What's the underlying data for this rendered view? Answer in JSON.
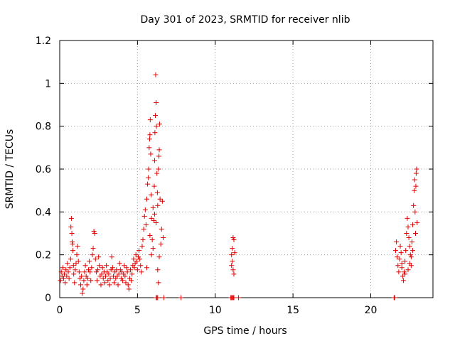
{
  "chart_data": {
    "type": "scatter",
    "title": "Day 301 of 2023, SRMTID for receiver nlib",
    "xlabel": "GPS time / hours",
    "ylabel": "SRMTID / TECUs",
    "xlim": [
      0,
      24
    ],
    "ylim": [
      0,
      1.2
    ],
    "xticks": [
      0,
      5,
      10,
      15,
      20
    ],
    "xtick_labels": [
      "0",
      "5",
      "10",
      "15",
      "20"
    ],
    "yticks": [
      0,
      0.2,
      0.4,
      0.6,
      0.8,
      1.0,
      1.2
    ],
    "ytick_labels": [
      "0",
      "0.2",
      "0.4",
      "0.6",
      "0.8",
      "1",
      "1.2"
    ],
    "grid": true,
    "marker": "+",
    "marker_color": "#e00000",
    "series": [
      {
        "name": "SRMTID",
        "points": [
          [
            0.05,
            0.08
          ],
          [
            0.1,
            0.12
          ],
          [
            0.15,
            0.1
          ],
          [
            0.2,
            0.14
          ],
          [
            0.25,
            0.09
          ],
          [
            0.3,
            0.11
          ],
          [
            0.35,
            0.07
          ],
          [
            0.4,
            0.13
          ],
          [
            0.45,
            0.1
          ],
          [
            0.5,
            0.16
          ],
          [
            0.55,
            0.12
          ],
          [
            0.6,
            0.09
          ],
          [
            0.65,
            0.14
          ],
          [
            0.7,
            0.18
          ],
          [
            0.72,
            0.33
          ],
          [
            0.75,
            0.37
          ],
          [
            0.78,
            0.3
          ],
          [
            0.8,
            0.26
          ],
          [
            0.82,
            0.25
          ],
          [
            0.85,
            0.22
          ],
          [
            0.88,
            0.15
          ],
          [
            0.9,
            0.11
          ],
          [
            0.95,
            0.07
          ],
          [
            1.0,
            0.13
          ],
          [
            1.05,
            0.16
          ],
          [
            1.1,
            0.2
          ],
          [
            1.15,
            0.24
          ],
          [
            1.2,
            0.17
          ],
          [
            1.25,
            0.12
          ],
          [
            1.3,
            0.09
          ],
          [
            1.35,
            0.06
          ],
          [
            1.4,
            0.1
          ],
          [
            1.45,
            0.02
          ],
          [
            1.5,
            0.04
          ],
          [
            1.55,
            0.08
          ],
          [
            1.6,
            0.12
          ],
          [
            1.65,
            0.15
          ],
          [
            1.7,
            0.1
          ],
          [
            1.75,
            0.06
          ],
          [
            1.8,
            0.09
          ],
          [
            1.85,
            0.13
          ],
          [
            1.9,
            0.17
          ],
          [
            1.95,
            0.12
          ],
          [
            2.0,
            0.08
          ],
          [
            2.05,
            0.14
          ],
          [
            2.1,
            0.2
          ],
          [
            2.15,
            0.23
          ],
          [
            2.2,
            0.31
          ],
          [
            2.25,
            0.3
          ],
          [
            2.3,
            0.18
          ],
          [
            2.35,
            0.12
          ],
          [
            2.4,
            0.08
          ],
          [
            2.45,
            0.13
          ],
          [
            2.5,
            0.19
          ],
          [
            2.55,
            0.15
          ],
          [
            2.6,
            0.1
          ],
          [
            2.65,
            0.06
          ],
          [
            2.7,
            0.11
          ],
          [
            2.75,
            0.14
          ],
          [
            2.8,
            0.09
          ],
          [
            2.85,
            0.12
          ],
          [
            2.9,
            0.07
          ],
          [
            2.95,
            0.1
          ],
          [
            3.0,
            0.15
          ],
          [
            3.05,
            0.12
          ],
          [
            3.1,
            0.08
          ],
          [
            3.15,
            0.11
          ],
          [
            3.2,
            0.06
          ],
          [
            3.25,
            0.09
          ],
          [
            3.3,
            0.13
          ],
          [
            3.35,
            0.19
          ],
          [
            3.4,
            0.14
          ],
          [
            3.45,
            0.1
          ],
          [
            3.5,
            0.07
          ],
          [
            3.55,
            0.12
          ],
          [
            3.6,
            0.09
          ],
          [
            3.65,
            0.13
          ],
          [
            3.7,
            0.1
          ],
          [
            3.75,
            0.06
          ],
          [
            3.8,
            0.11
          ],
          [
            3.85,
            0.16
          ],
          [
            3.9,
            0.13
          ],
          [
            3.95,
            0.09
          ],
          [
            4.0,
            0.12
          ],
          [
            4.05,
            0.08
          ],
          [
            4.1,
            0.11
          ],
          [
            4.15,
            0.15
          ],
          [
            4.2,
            0.1
          ],
          [
            4.25,
            0.07
          ],
          [
            4.3,
            0.14
          ],
          [
            4.35,
            0.12
          ],
          [
            4.4,
            0.06
          ],
          [
            4.45,
            0.04
          ],
          [
            4.5,
            0.09
          ],
          [
            4.55,
            0.13
          ],
          [
            4.6,
            0.08
          ],
          [
            4.65,
            0.11
          ],
          [
            4.7,
            0.15
          ],
          [
            4.75,
            0.18
          ],
          [
            4.8,
            0.14
          ],
          [
            4.85,
            0.16
          ],
          [
            4.9,
            0.2
          ],
          [
            4.95,
            0.17
          ],
          [
            5.0,
            0.13
          ],
          [
            5.05,
            0.19
          ],
          [
            5.1,
            0.22
          ],
          [
            5.15,
            0.18
          ],
          [
            5.2,
            0.15
          ],
          [
            5.25,
            0.12
          ],
          [
            5.3,
            0.24
          ],
          [
            5.35,
            0.27
          ],
          [
            5.4,
            0.32
          ],
          [
            5.45,
            0.38
          ],
          [
            5.5,
            0.41
          ],
          [
            5.55,
            0.34
          ],
          [
            5.6,
            0.46
          ],
          [
            5.65,
            0.53
          ],
          [
            5.7,
            0.56
          ],
          [
            5.72,
            0.6
          ],
          [
            5.75,
            0.7
          ],
          [
            5.78,
            0.74
          ],
          [
            5.8,
            0.76
          ],
          [
            5.82,
            0.83
          ],
          [
            5.85,
            0.67
          ],
          [
            5.88,
            0.48
          ],
          [
            5.9,
            0.37
          ],
          [
            5.95,
            0.27
          ],
          [
            6.0,
            0.23
          ],
          [
            6.05,
            0.36
          ],
          [
            6.08,
            0.52
          ],
          [
            6.1,
            0.64
          ],
          [
            6.12,
            0.77
          ],
          [
            6.15,
            0.85
          ],
          [
            6.17,
            1.04
          ],
          [
            6.2,
            0.91
          ],
          [
            6.22,
            0.8
          ],
          [
            6.25,
            0.58
          ],
          [
            6.28,
            0.49
          ],
          [
            6.3,
            0.43
          ],
          [
            6.35,
            0.6
          ],
          [
            6.38,
            0.66
          ],
          [
            6.4,
            0.69
          ],
          [
            6.42,
            0.81
          ],
          [
            6.45,
            0.46
          ],
          [
            6.5,
            0.25
          ],
          [
            6.55,
            0.32
          ],
          [
            6.6,
            0.45
          ],
          [
            6.65,
            0.28
          ],
          [
            6.3,
            0.13
          ],
          [
            6.35,
            0.07
          ],
          [
            6.4,
            0.19
          ],
          [
            5.9,
            0.2
          ],
          [
            5.6,
            0.14
          ],
          [
            5.8,
            0.29
          ],
          [
            6.0,
            0.42
          ],
          [
            6.1,
            0.39
          ],
          [
            6.2,
            0.35
          ],
          [
            11.05,
            0.2
          ],
          [
            11.1,
            0.23
          ],
          [
            11.15,
            0.28
          ],
          [
            11.2,
            0.27
          ],
          [
            11.1,
            0.17
          ],
          [
            11.15,
            0.13
          ],
          [
            11.2,
            0.11
          ],
          [
            11.25,
            0.21
          ],
          [
            11.05,
            0.15
          ],
          [
            21.6,
            0.22
          ],
          [
            21.65,
            0.26
          ],
          [
            21.7,
            0.19
          ],
          [
            21.75,
            0.15
          ],
          [
            21.8,
            0.12
          ],
          [
            21.85,
            0.18
          ],
          [
            21.9,
            0.24
          ],
          [
            21.95,
            0.21
          ],
          [
            22.0,
            0.16
          ],
          [
            22.05,
            0.1
          ],
          [
            22.1,
            0.08
          ],
          [
            22.15,
            0.12
          ],
          [
            22.2,
            0.17
          ],
          [
            22.25,
            0.22
          ],
          [
            22.3,
            0.3
          ],
          [
            22.35,
            0.37
          ],
          [
            22.4,
            0.33
          ],
          [
            22.45,
            0.28
          ],
          [
            22.5,
            0.24
          ],
          [
            22.55,
            0.2
          ],
          [
            22.6,
            0.15
          ],
          [
            22.65,
            0.26
          ],
          [
            22.7,
            0.34
          ],
          [
            22.75,
            0.43
          ],
          [
            22.8,
            0.5
          ],
          [
            22.82,
            0.55
          ],
          [
            22.85,
            0.4
          ],
          [
            22.88,
            0.3
          ],
          [
            22.9,
            0.52
          ],
          [
            22.92,
            0.58
          ],
          [
            22.95,
            0.6
          ],
          [
            22.98,
            0.35
          ],
          [
            22.7,
            0.22
          ],
          [
            22.6,
            0.19
          ],
          [
            22.5,
            0.16
          ],
          [
            22.4,
            0.13
          ],
          [
            22.2,
            0.11
          ],
          [
            22.0,
            0.14
          ]
        ]
      }
    ],
    "zero_markers_x": [
      6.2,
      6.25,
      6.3,
      6.7,
      7.8,
      11.0,
      11.05,
      11.1,
      11.15,
      11.2,
      11.5,
      21.5,
      21.55
    ]
  }
}
